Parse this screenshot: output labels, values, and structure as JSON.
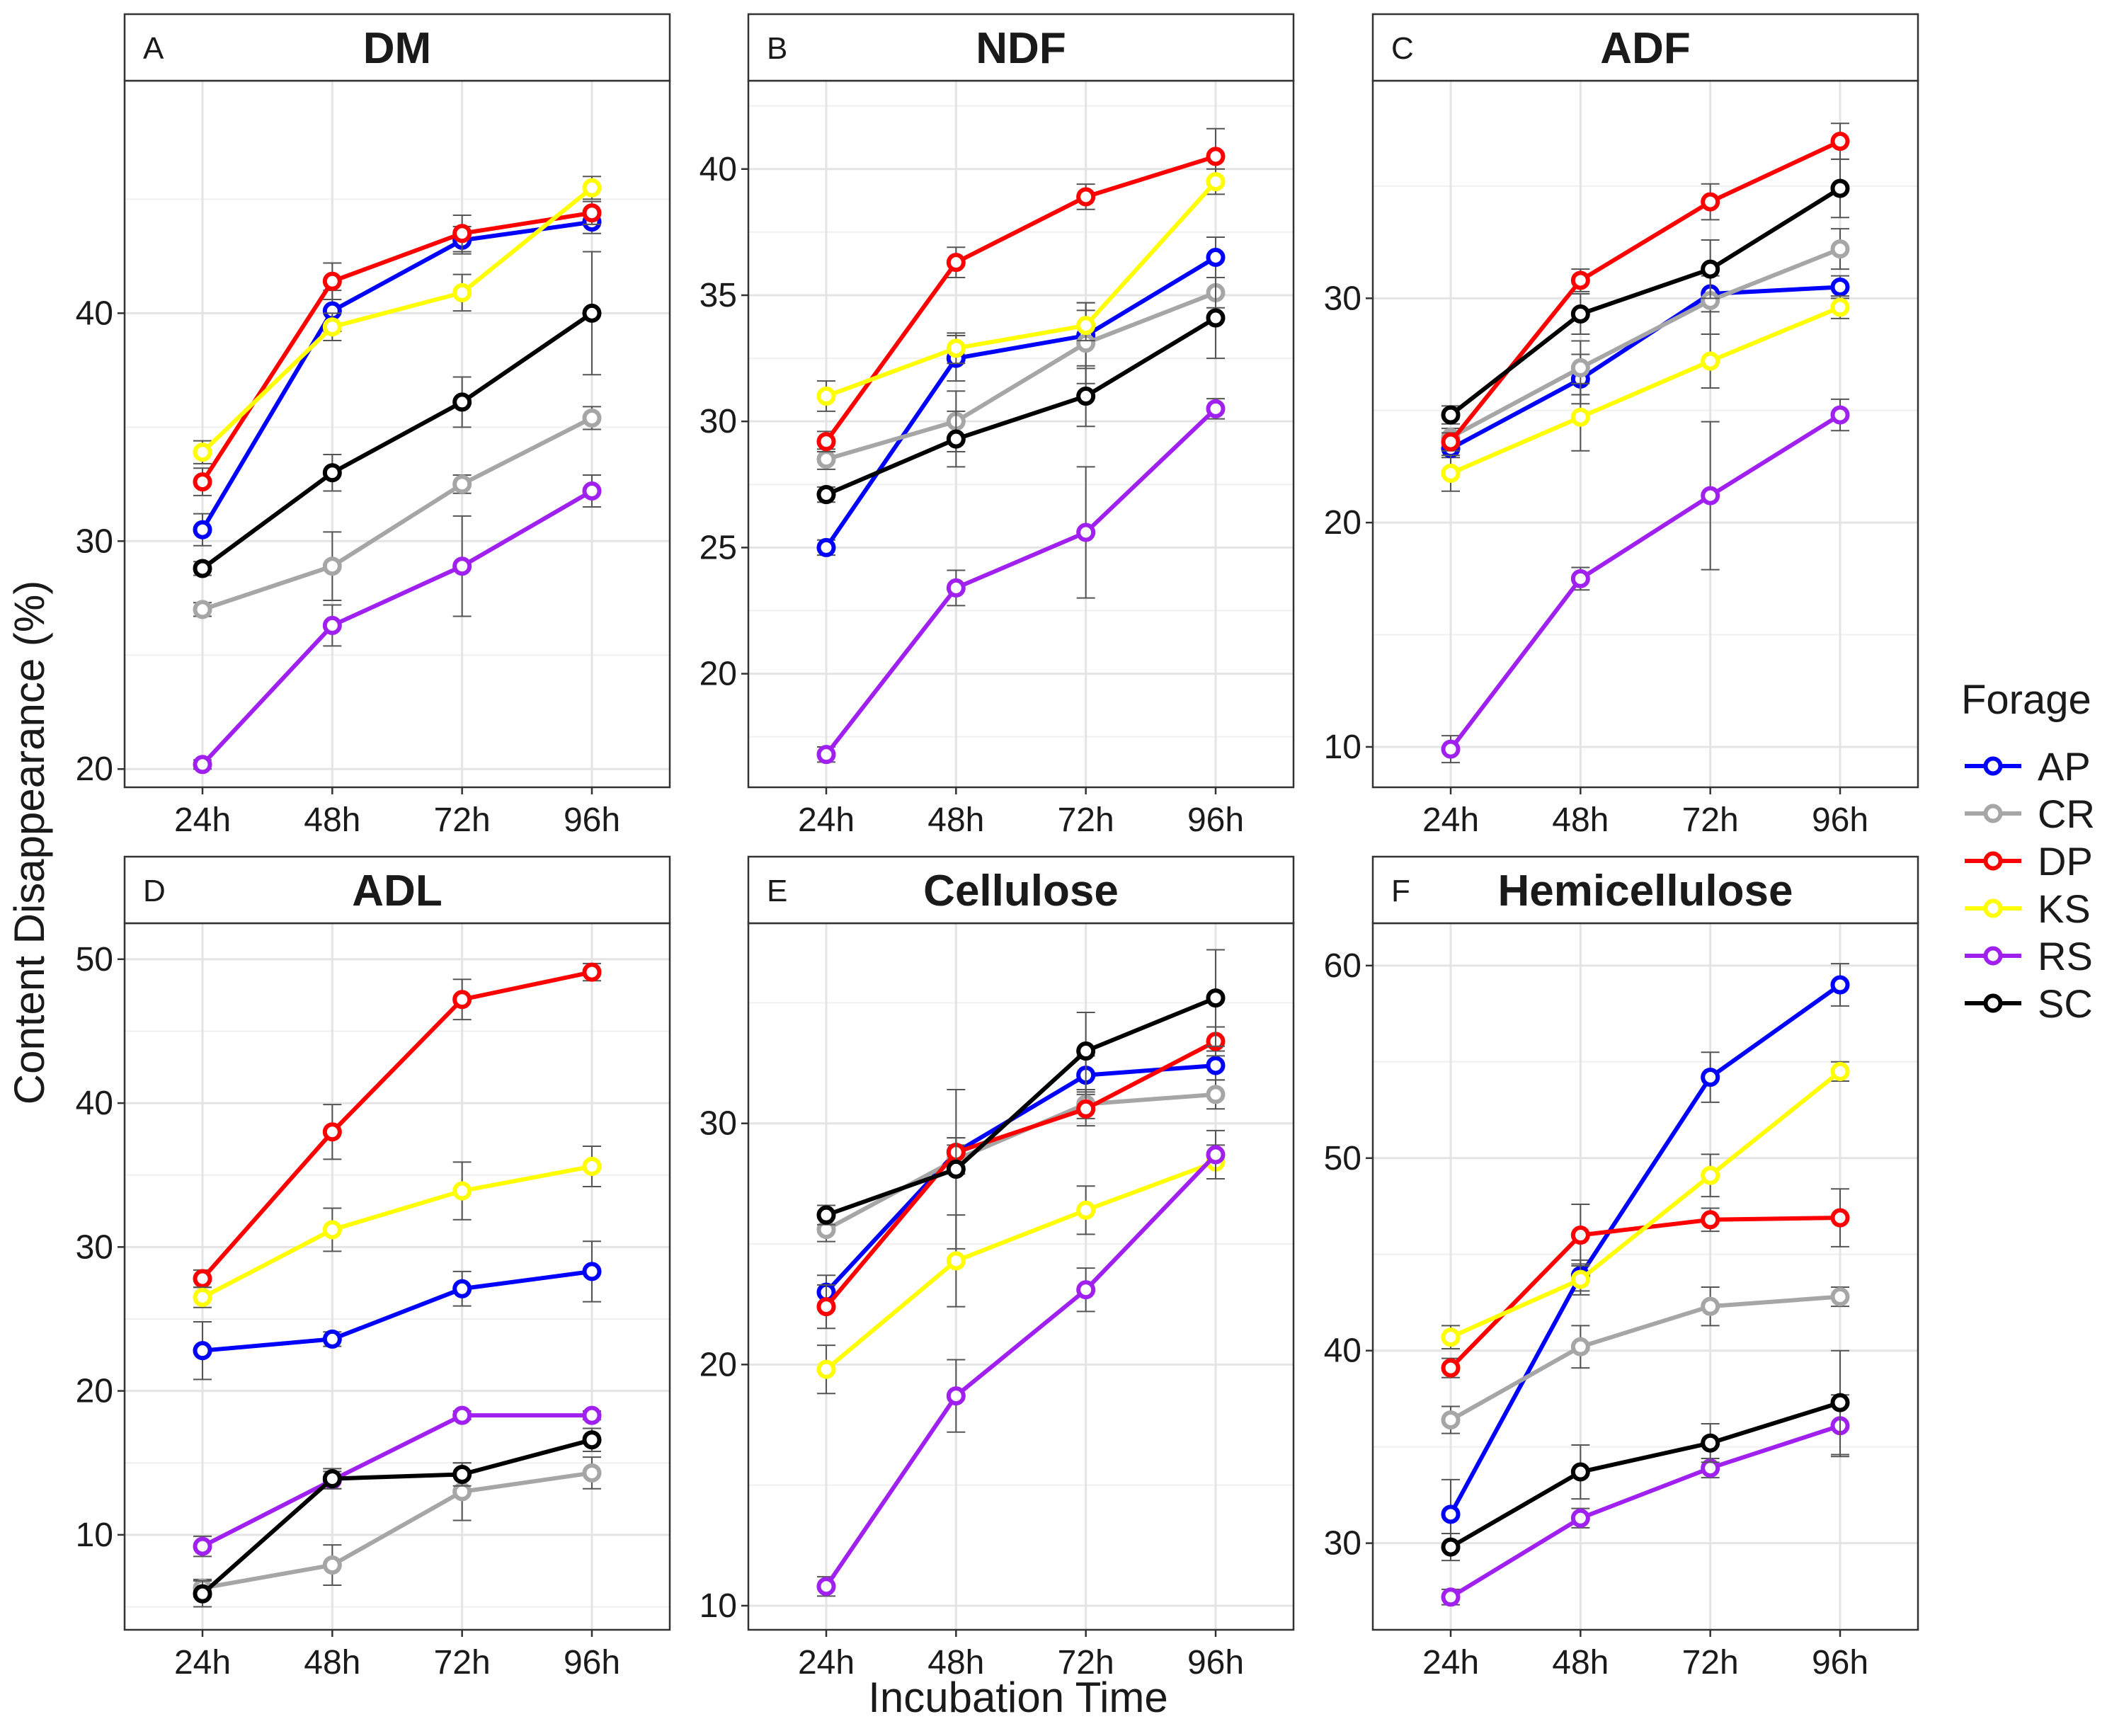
{
  "chart_data": {
    "type": "line",
    "xlabel": "Incubation Time",
    "ylabel": "Content Disappearance (%)",
    "categories": [
      "24h",
      "48h",
      "72h",
      "96h"
    ],
    "legend": {
      "title": "Forage",
      "position": "right",
      "entries": [
        "AP",
        "CR",
        "DP",
        "KS",
        "RS",
        "SC"
      ]
    },
    "colors": {
      "AP": "#0000ff",
      "CR": "#a6a6a6",
      "DP": "#ff0000",
      "KS": "#ffff00",
      "RS": "#a020f0",
      "SC": "#000000"
    },
    "grid": true,
    "panels": [
      {
        "tag": "A",
        "title": "DM",
        "ylim": [
          19.2,
          50.2
        ],
        "yticks": [
          20,
          30,
          40
        ],
        "series": [
          {
            "name": "AP",
            "values": [
              30.5,
              40.1,
              43.2,
              44.0
            ],
            "err": [
              0.7,
              0.9,
              0.6,
              0.5
            ]
          },
          {
            "name": "CR",
            "values": [
              27.0,
              28.9,
              32.5,
              35.4
            ],
            "err": [
              0.3,
              1.5,
              0.4,
              0.5
            ]
          },
          {
            "name": "DP",
            "values": [
              32.6,
              41.4,
              43.5,
              44.4
            ],
            "err": [
              0.6,
              0.8,
              0.8,
              0.5
            ]
          },
          {
            "name": "KS",
            "values": [
              33.9,
              39.4,
              40.9,
              45.5
            ],
            "err": [
              0.5,
              0.6,
              0.8,
              0.5
            ]
          },
          {
            "name": "RS",
            "values": [
              20.2,
              26.3,
              28.9,
              32.2
            ],
            "err": [
              0.2,
              0.9,
              2.2,
              0.7
            ]
          },
          {
            "name": "SC",
            "values": [
              28.8,
              33.0,
              36.1,
              40.0
            ],
            "err": [
              0.3,
              0.8,
              1.1,
              2.7
            ]
          }
        ]
      },
      {
        "tag": "B",
        "title": "NDF",
        "ylim": [
          15.5,
          43.5
        ],
        "yticks": [
          20,
          25,
          30,
          35,
          40
        ],
        "series": [
          {
            "name": "AP",
            "values": [
              25.0,
              32.5,
              33.4,
              36.5
            ],
            "err": [
              0.3,
              0.9,
              1.3,
              0.8
            ]
          },
          {
            "name": "CR",
            "values": [
              28.5,
              30.0,
              33.1,
              35.1
            ],
            "err": [
              0.4,
              1.2,
              1.6,
              0.6
            ]
          },
          {
            "name": "DP",
            "values": [
              29.2,
              36.3,
              38.9,
              40.5
            ],
            "err": [
              0.4,
              0.6,
              0.5,
              1.1
            ]
          },
          {
            "name": "KS",
            "values": [
              31.0,
              32.9,
              33.8,
              39.5
            ],
            "err": [
              0.6,
              0.6,
              0.6,
              0.5
            ]
          },
          {
            "name": "RS",
            "values": [
              16.8,
              23.4,
              25.6,
              30.5
            ],
            "err": [
              0.3,
              0.7,
              2.6,
              0.4
            ]
          },
          {
            "name": "SC",
            "values": [
              27.1,
              29.3,
              31.0,
              34.1
            ],
            "err": [
              0.3,
              1.1,
              1.2,
              1.6
            ]
          }
        ]
      },
      {
        "tag": "C",
        "title": "ADF",
        "ylim": [
          8.2,
          39.7
        ],
        "yticks": [
          10,
          20,
          30
        ],
        "series": [
          {
            "name": "AP",
            "values": [
              23.3,
              26.4,
              30.2,
              30.5
            ],
            "err": [
              0.4,
              1.1,
              0.8,
              0.5
            ]
          },
          {
            "name": "CR",
            "values": [
              23.8,
              26.9,
              29.9,
              32.2
            ],
            "err": [
              0.4,
              1.2,
              1.5,
              0.9
            ]
          },
          {
            "name": "DP",
            "values": [
              23.6,
              30.8,
              34.3,
              37.0
            ],
            "err": [
              0.4,
              0.5,
              0.8,
              0.8
            ]
          },
          {
            "name": "KS",
            "values": [
              22.2,
              24.7,
              27.2,
              29.6
            ],
            "err": [
              0.8,
              1.5,
              1.2,
              0.5
            ]
          },
          {
            "name": "RS",
            "values": [
              9.9,
              17.5,
              21.2,
              24.8
            ],
            "err": [
              0.6,
              0.5,
              3.3,
              0.7
            ]
          },
          {
            "name": "SC",
            "values": [
              24.8,
              29.3,
              31.3,
              34.9
            ],
            "err": [
              0.4,
              0.9,
              1.3,
              1.3
            ]
          }
        ]
      },
      {
        "tag": "D",
        "title": "ADL",
        "ylim": [
          3.4,
          52.5
        ],
        "yticks": [
          10,
          20,
          30,
          40,
          50
        ],
        "series": [
          {
            "name": "AP",
            "values": [
              22.8,
              23.6,
              27.1,
              28.3
            ],
            "err": [
              2.0,
              0.5,
              1.2,
              2.1
            ]
          },
          {
            "name": "CR",
            "values": [
              6.3,
              7.9,
              13.0,
              14.3
            ],
            "err": [
              0.6,
              1.4,
              2.0,
              1.1
            ]
          },
          {
            "name": "DP",
            "values": [
              27.8,
              38.0,
              47.2,
              49.1
            ],
            "err": [
              0.6,
              1.9,
              1.4,
              0.6
            ]
          },
          {
            "name": "KS",
            "values": [
              26.5,
              31.2,
              33.9,
              35.6
            ],
            "err": [
              0.7,
              1.5,
              2.0,
              1.4
            ]
          },
          {
            "name": "RS",
            "values": [
              9.2,
              13.8,
              18.3,
              18.3
            ],
            "err": [
              0.7,
              0.6,
              0.3,
              0.3
            ]
          },
          {
            "name": "SC",
            "values": [
              5.9,
              13.9,
              14.2,
              16.6
            ],
            "err": [
              0.9,
              0.7,
              0.8,
              0.8
            ]
          }
        ]
      },
      {
        "tag": "E",
        "title": "Cellulose",
        "ylim": [
          9.0,
          38.3
        ],
        "yticks": [
          10,
          20,
          30
        ],
        "series": [
          {
            "name": "AP",
            "values": [
              23.0,
              28.8,
              32.0,
              32.4
            ],
            "err": [
              0.7,
              0.6,
              0.8,
              0.6
            ]
          },
          {
            "name": "CR",
            "values": [
              25.6,
              28.5,
              30.8,
              31.2
            ],
            "err": [
              0.5,
              0.6,
              0.6,
              0.6
            ]
          },
          {
            "name": "DP",
            "values": [
              22.4,
              28.8,
              30.6,
              33.4
            ],
            "err": [
              0.9,
              0.6,
              0.7,
              0.6
            ]
          },
          {
            "name": "KS",
            "values": [
              19.8,
              24.3,
              26.4,
              28.4
            ],
            "err": [
              1.0,
              1.9,
              1.0,
              0.7
            ]
          },
          {
            "name": "RS",
            "values": [
              10.8,
              18.7,
              23.1,
              28.7
            ],
            "err": [
              0.4,
              1.5,
              0.9,
              1.0
            ]
          },
          {
            "name": "SC",
            "values": [
              26.2,
              28.1,
              33.0,
              35.2
            ],
            "err": [
              0.4,
              3.3,
              1.6,
              2.0
            ]
          }
        ]
      },
      {
        "tag": "F",
        "title": "Hemicellulose",
        "ylim": [
          25.5,
          62.2
        ],
        "yticks": [
          30,
          40,
          50,
          60
        ],
        "series": [
          {
            "name": "AP",
            "values": [
              31.5,
              43.9,
              54.2,
              59.0
            ],
            "err": [
              1.8,
              0.8,
              1.3,
              1.1
            ]
          },
          {
            "name": "CR",
            "values": [
              36.4,
              40.2,
              42.3,
              42.8
            ],
            "err": [
              0.7,
              1.1,
              1.0,
              0.5
            ]
          },
          {
            "name": "DP",
            "values": [
              39.1,
              46.0,
              46.8,
              46.9
            ],
            "err": [
              0.5,
              1.6,
              0.6,
              1.5
            ]
          },
          {
            "name": "KS",
            "values": [
              40.7,
              43.7,
              49.1,
              54.5
            ],
            "err": [
              0.6,
              0.8,
              1.1,
              0.5
            ]
          },
          {
            "name": "RS",
            "values": [
              27.2,
              31.3,
              33.9,
              36.1
            ],
            "err": [
              0.4,
              0.5,
              0.5,
              1.6
            ]
          },
          {
            "name": "SC",
            "values": [
              29.8,
              33.7,
              35.2,
              37.3
            ],
            "err": [
              0.7,
              1.4,
              1.0,
              2.7
            ]
          }
        ]
      }
    ]
  }
}
